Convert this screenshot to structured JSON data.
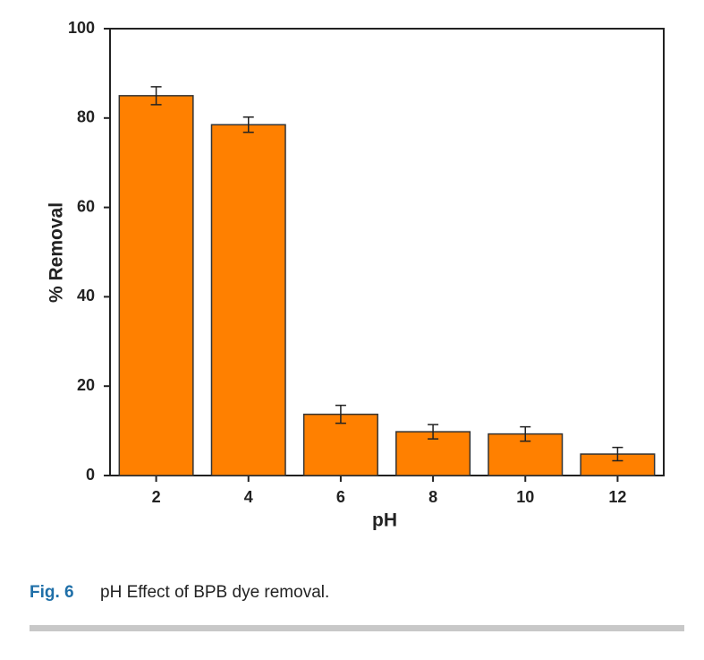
{
  "chart_data": {
    "type": "bar",
    "x_label": "pH",
    "y_label": "% Removal",
    "categories": [
      "2",
      "4",
      "6",
      "8",
      "10",
      "12"
    ],
    "values": [
      85,
      78.5,
      13.7,
      9.8,
      9.3,
      4.8
    ],
    "errors": [
      2,
      1.7,
      2,
      1.6,
      1.6,
      1.5
    ],
    "color": "#ff8000",
    "ylim": [
      0,
      100
    ],
    "yticks": [
      0,
      20,
      40,
      60,
      80,
      100
    ],
    "grid": false
  },
  "caption": {
    "label": "Fig. 6",
    "text": "pH Effect of BPB dye removal."
  }
}
